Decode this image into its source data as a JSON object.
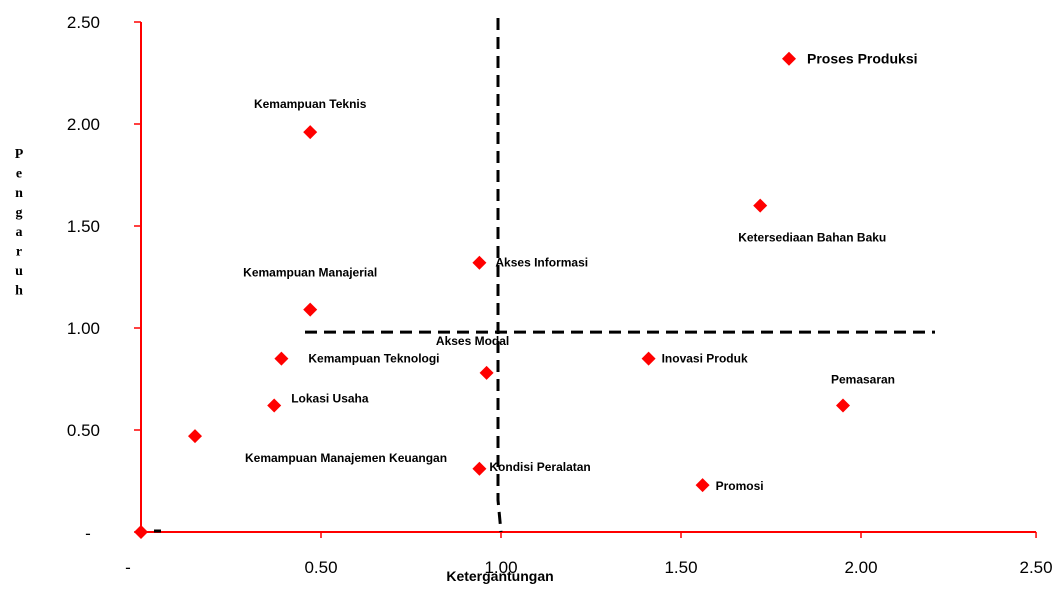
{
  "chart_data": {
    "type": "scatter",
    "xlabel": "Ketergantungan",
    "ylabel": "Pengaruh",
    "xlim": [
      0,
      2.5
    ],
    "ylim": [
      0,
      2.5
    ],
    "x_ticks": [
      "-",
      "0.50",
      "1.00",
      "1.50",
      "2.00",
      "2.50"
    ],
    "y_ticks": [
      "-",
      "0.50",
      "1.00",
      "1.50",
      "2.00",
      "2.50"
    ],
    "axis_color": "#ff0000",
    "marker_color": "#ff0000",
    "divider_color": "#000000",
    "dividers": {
      "vertical_x": 1.0,
      "horizontal_y": 0.98
    },
    "points": [
      {
        "label": "Proses Produksi",
        "x": 1.8,
        "y": 2.32
      },
      {
        "label": "Kemampuan Teknis",
        "x": 0.47,
        "y": 1.96
      },
      {
        "label": "Ketersediaan Bahan Baku",
        "x": 1.72,
        "y": 1.6
      },
      {
        "label": "Akses Informasi",
        "x": 0.94,
        "y": 1.32
      },
      {
        "label": "Kemampuan Manajerial",
        "x": 0.47,
        "y": 1.09
      },
      {
        "label": "Kemampuan Teknologi",
        "x": 0.39,
        "y": 0.85
      },
      {
        "label": "Akses Modal",
        "x": 0.96,
        "y": 0.78
      },
      {
        "label": "Inovasi Produk",
        "x": 1.41,
        "y": 0.85
      },
      {
        "label": "Pemasaran",
        "x": 1.95,
        "y": 0.62
      },
      {
        "label": "Lokasi Usaha",
        "x": 0.37,
        "y": 0.62
      },
      {
        "label": "Kemampuan Manajemen Keuangan",
        "x": 0.15,
        "y": 0.47
      },
      {
        "label": "Kondisi Peralatan",
        "x": 0.94,
        "y": 0.31
      },
      {
        "label": "Promosi",
        "x": 1.56,
        "y": 0.23
      },
      {
        "label": "",
        "x": 0.0,
        "y": 0.0
      }
    ]
  }
}
